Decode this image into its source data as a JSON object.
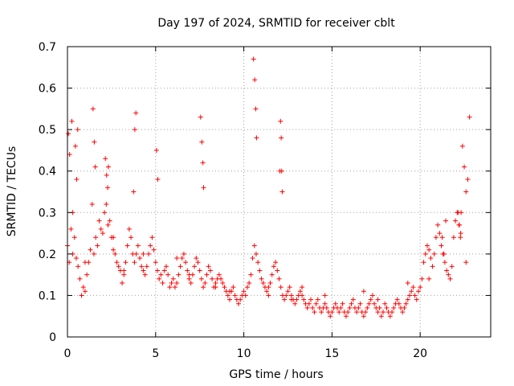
{
  "chart_data": {
    "type": "scatter",
    "title": "Day 197 of 2024, SRMTID for receiver cblt",
    "xlabel": "GPS time / hours",
    "ylabel": "SRMTID / TECUs",
    "xlim": [
      0,
      24
    ],
    "ylim": [
      0,
      0.7
    ],
    "xticks": [
      0,
      5,
      10,
      15,
      20
    ],
    "yticks": [
      0,
      0.1,
      0.2,
      0.3,
      0.4,
      0.5,
      0.6,
      0.7
    ],
    "xtick_labels": [
      "0",
      "5",
      "10",
      "15",
      "20"
    ],
    "ytick_labels": [
      "0",
      "0.1",
      "0.2",
      "0.3",
      "0.4",
      "0.5",
      "0.6",
      "0.7"
    ],
    "grid": true,
    "marker": "+",
    "color": "#ff0000",
    "series": [
      {
        "name": "SRMTID",
        "x": [
          0.0,
          0.1,
          0.2,
          0.3,
          0.4,
          0.5,
          0.6,
          0.7,
          0.8,
          0.9,
          1.0,
          1.1,
          1.2,
          1.3,
          1.4,
          1.5,
          1.6,
          1.7,
          1.8,
          1.9,
          2.0,
          2.1,
          2.2,
          2.3,
          2.4,
          2.5,
          2.6,
          2.7,
          2.8,
          2.9,
          3.0,
          3.1,
          3.2,
          3.3,
          3.4,
          3.5,
          3.6,
          3.7,
          3.8,
          3.9,
          4.0,
          4.1,
          4.2,
          4.3,
          4.4,
          4.5,
          4.6,
          4.7,
          4.8,
          4.9,
          5.0,
          5.1,
          5.2,
          5.3,
          5.4,
          5.5,
          5.6,
          5.7,
          5.8,
          5.9,
          6.0,
          6.1,
          6.2,
          6.3,
          6.4,
          6.5,
          6.6,
          6.7,
          6.8,
          6.9,
          7.0,
          7.1,
          7.2,
          7.3,
          7.4,
          7.5,
          7.6,
          7.7,
          7.8,
          7.9,
          8.0,
          8.1,
          8.2,
          8.3,
          8.4,
          8.5,
          8.6,
          8.7,
          8.8,
          8.9,
          9.0,
          9.1,
          9.2,
          9.3,
          9.4,
          9.5,
          9.6,
          9.7,
          9.8,
          9.9,
          10.0,
          10.1,
          10.2,
          10.3,
          10.4,
          10.5,
          10.6,
          10.7,
          10.8,
          10.9,
          11.0,
          11.1,
          11.2,
          11.3,
          11.4,
          11.5,
          11.6,
          11.7,
          11.8,
          11.9,
          12.0,
          12.1,
          12.2,
          12.3,
          12.4,
          12.5,
          12.6,
          12.7,
          12.8,
          12.9,
          13.0,
          13.1,
          13.2,
          13.3,
          13.4,
          13.5,
          13.6,
          13.7,
          13.8,
          13.9,
          14.0,
          14.1,
          14.2,
          14.3,
          14.4,
          14.5,
          14.6,
          14.7,
          14.8,
          14.9,
          15.0,
          15.1,
          15.2,
          15.3,
          15.4,
          15.5,
          15.6,
          15.7,
          15.8,
          15.9,
          16.0,
          16.1,
          16.2,
          16.3,
          16.4,
          16.5,
          16.6,
          16.7,
          16.8,
          16.9,
          17.0,
          17.1,
          17.2,
          17.3,
          17.4,
          17.5,
          17.6,
          17.7,
          17.8,
          17.9,
          18.0,
          18.1,
          18.2,
          18.3,
          18.4,
          18.5,
          18.6,
          18.7,
          18.8,
          18.9,
          19.0,
          19.1,
          19.2,
          19.3,
          19.4,
          19.5,
          19.6,
          19.7,
          19.8,
          19.9,
          20.0,
          20.1,
          20.2,
          20.3,
          20.4,
          20.5,
          20.6,
          20.7,
          20.8,
          20.9,
          21.0,
          21.1,
          21.2,
          21.3,
          21.4,
          21.5,
          21.6,
          21.7,
          21.8,
          21.9,
          22.0,
          22.1,
          22.2,
          22.3,
          22.4,
          22.5,
          22.6,
          22.7,
          22.8,
          0.05,
          0.12,
          0.25,
          0.45,
          0.52,
          0.58,
          1.45,
          1.52,
          1.58,
          2.15,
          2.22,
          2.28,
          2.32,
          3.75,
          3.82,
          3.88,
          5.05,
          5.12,
          7.55,
          7.62,
          7.68,
          7.72,
          10.55,
          10.62,
          10.68,
          10.72,
          12.05,
          12.08,
          12.12,
          12.15,
          12.18,
          22.15,
          22.22,
          22.28,
          22.32,
          21.25,
          21.35,
          21.45,
          0.3,
          1.0,
          2.6,
          3.2,
          4.3,
          6.2,
          6.9,
          8.4,
          9.2,
          11.4,
          12.7,
          13.3,
          14.6,
          16.8,
          17.6,
          19.3,
          20.5,
          22.6
        ],
        "y": [
          0.22,
          0.18,
          0.26,
          0.2,
          0.24,
          0.19,
          0.17,
          0.14,
          0.1,
          0.12,
          0.11,
          0.15,
          0.18,
          0.21,
          0.32,
          0.2,
          0.24,
          0.22,
          0.28,
          0.26,
          0.25,
          0.3,
          0.32,
          0.27,
          0.28,
          0.24,
          0.21,
          0.2,
          0.18,
          0.17,
          0.16,
          0.13,
          0.15,
          0.18,
          0.22,
          0.26,
          0.24,
          0.2,
          0.18,
          0.2,
          0.22,
          0.19,
          0.17,
          0.16,
          0.15,
          0.17,
          0.2,
          0.22,
          0.24,
          0.21,
          0.18,
          0.16,
          0.14,
          0.15,
          0.13,
          0.16,
          0.17,
          0.15,
          0.12,
          0.13,
          0.14,
          0.12,
          0.13,
          0.15,
          0.17,
          0.19,
          0.2,
          0.18,
          0.16,
          0.14,
          0.13,
          0.15,
          0.17,
          0.19,
          0.18,
          0.16,
          0.14,
          0.12,
          0.13,
          0.15,
          0.17,
          0.16,
          0.14,
          0.12,
          0.13,
          0.14,
          0.15,
          0.14,
          0.13,
          0.12,
          0.11,
          0.1,
          0.09,
          0.11,
          0.12,
          0.1,
          0.09,
          0.08,
          0.09,
          0.1,
          0.11,
          0.1,
          0.12,
          0.13,
          0.15,
          0.19,
          0.22,
          0.2,
          0.18,
          0.16,
          0.14,
          0.13,
          0.12,
          0.11,
          0.12,
          0.13,
          0.15,
          0.17,
          0.18,
          0.16,
          0.14,
          0.12,
          0.1,
          0.09,
          0.1,
          0.11,
          0.12,
          0.1,
          0.09,
          0.08,
          0.09,
          0.1,
          0.11,
          0.1,
          0.09,
          0.08,
          0.07,
          0.08,
          0.09,
          0.07,
          0.06,
          0.08,
          0.09,
          0.07,
          0.06,
          0.07,
          0.08,
          0.07,
          0.06,
          0.05,
          0.06,
          0.07,
          0.08,
          0.07,
          0.06,
          0.07,
          0.08,
          0.06,
          0.05,
          0.06,
          0.07,
          0.08,
          0.09,
          0.07,
          0.06,
          0.07,
          0.08,
          0.06,
          0.05,
          0.06,
          0.07,
          0.08,
          0.09,
          0.1,
          0.08,
          0.07,
          0.06,
          0.07,
          0.05,
          0.06,
          0.08,
          0.07,
          0.06,
          0.05,
          0.06,
          0.07,
          0.08,
          0.09,
          0.08,
          0.07,
          0.06,
          0.07,
          0.08,
          0.09,
          0.1,
          0.11,
          0.12,
          0.1,
          0.09,
          0.11,
          0.12,
          0.14,
          0.18,
          0.2,
          0.22,
          0.21,
          0.19,
          0.17,
          0.2,
          0.24,
          0.27,
          0.25,
          0.22,
          0.2,
          0.18,
          0.16,
          0.15,
          0.14,
          0.17,
          0.24,
          0.28,
          0.3,
          0.27,
          0.25,
          0.46,
          0.41,
          0.35,
          0.38,
          0.53,
          0.49,
          0.44,
          0.52,
          0.46,
          0.38,
          0.5,
          0.55,
          0.47,
          0.41,
          0.43,
          0.39,
          0.36,
          0.41,
          0.35,
          0.5,
          0.54,
          0.45,
          0.38,
          0.53,
          0.47,
          0.42,
          0.36,
          0.67,
          0.62,
          0.55,
          0.48,
          0.4,
          0.52,
          0.48,
          0.4,
          0.35,
          0.3,
          0.27,
          0.24,
          0.3,
          0.24,
          0.2,
          0.28,
          0.3,
          0.18,
          0.24,
          0.16,
          0.2,
          0.19,
          0.15,
          0.12,
          0.11,
          0.1,
          0.09,
          0.12,
          0.1,
          0.11,
          0.09,
          0.13,
          0.14,
          0.18
        ]
      }
    ]
  }
}
